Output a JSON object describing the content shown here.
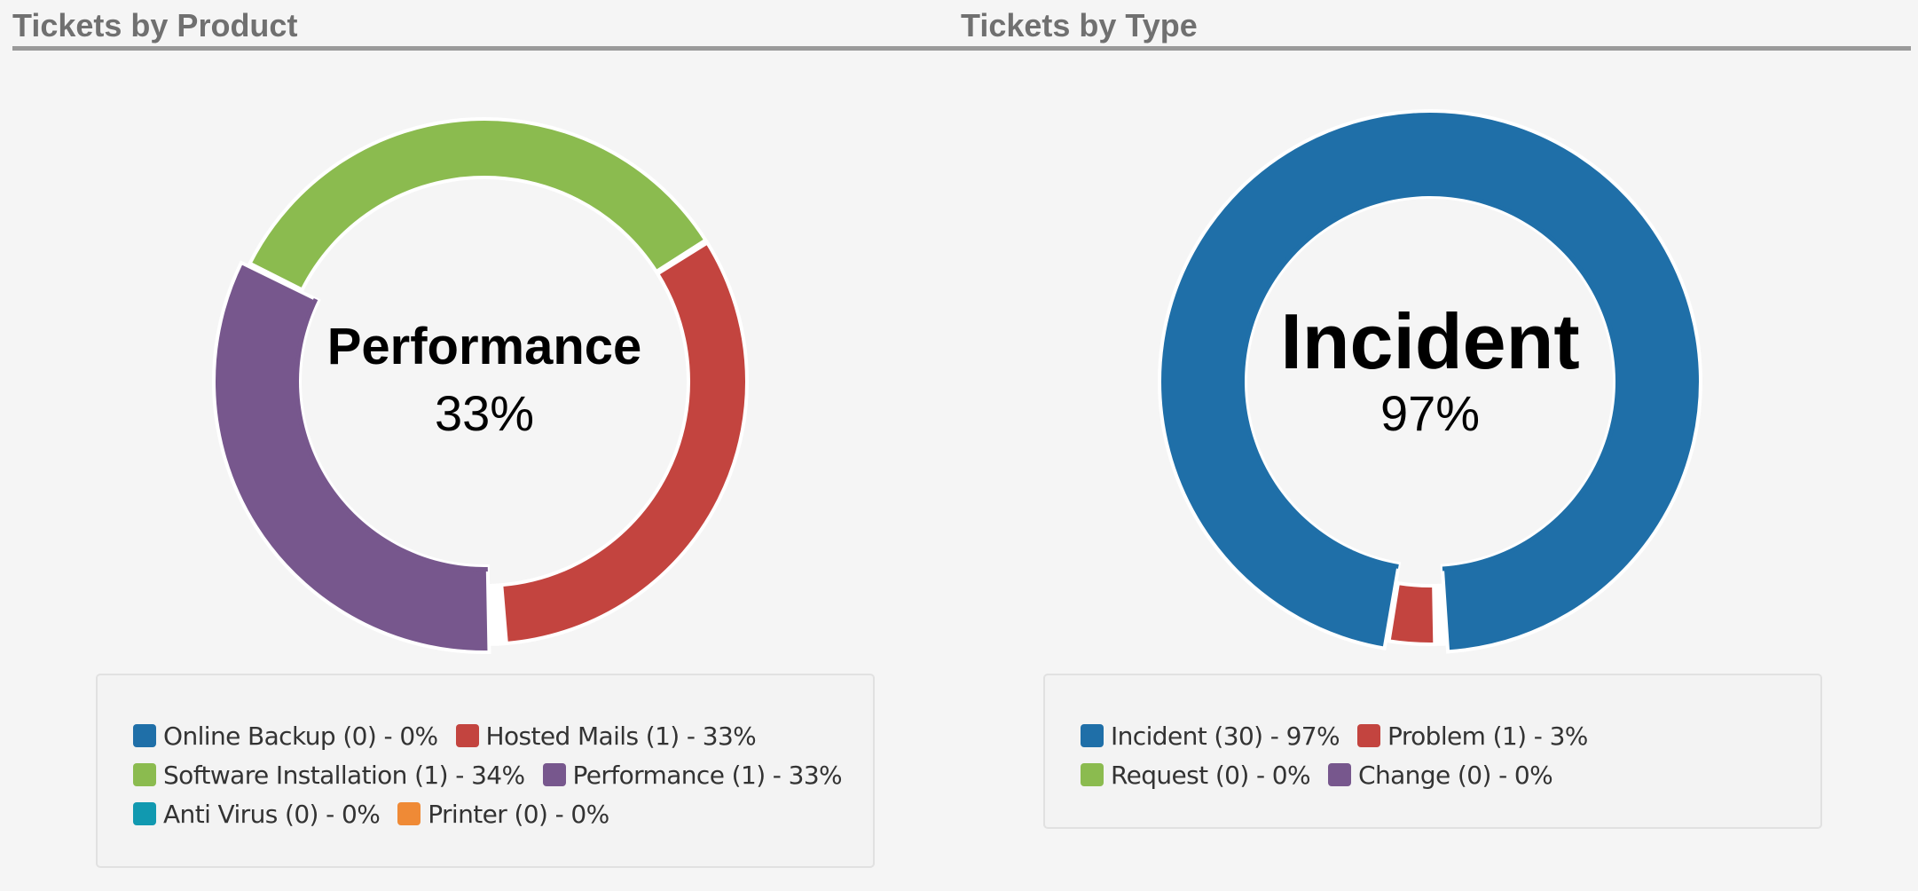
{
  "chart_data": [
    {
      "type": "pie",
      "variant": "donut",
      "title": "Tickets by Product",
      "center_label": "Performance",
      "center_value": "33%",
      "categories": [
        "Online Backup",
        "Hosted Mails",
        "Software Installation",
        "Performance",
        "Anti Virus",
        "Printer"
      ],
      "counts": [
        0,
        1,
        1,
        1,
        0,
        0
      ],
      "values": [
        0,
        33,
        34,
        33,
        0,
        0
      ],
      "colors": [
        "#1f6fa8",
        "#c3443f",
        "#8bbb4f",
        "#77578d",
        "#1199b0",
        "#ef8a36"
      ],
      "legend": [
        [
          "Online Backup (0) - 0%",
          "Hosted Mails (1) - 33%"
        ],
        [
          "Software Installation (1) - 34%",
          "Performance (1) - 33%"
        ],
        [
          "Anti Virus (0) - 0%",
          "Printer (0) - 0%"
        ]
      ],
      "highlighted": "Performance"
    },
    {
      "type": "pie",
      "variant": "donut",
      "title": "Tickets by Type",
      "center_label": "Incident",
      "center_value": "97%",
      "categories": [
        "Incident",
        "Problem",
        "Request",
        "Change"
      ],
      "counts": [
        30,
        1,
        0,
        0
      ],
      "values": [
        97,
        3,
        0,
        0
      ],
      "colors": [
        "#1f6fa8",
        "#c3443f",
        "#8bbb4f",
        "#77578d"
      ],
      "legend": [
        [
          "Incident (30) - 97%",
          "Problem (1) - 3%"
        ],
        [
          "Request (0) - 0%",
          "Change (0) - 0%"
        ]
      ],
      "highlighted": "Incident"
    }
  ]
}
